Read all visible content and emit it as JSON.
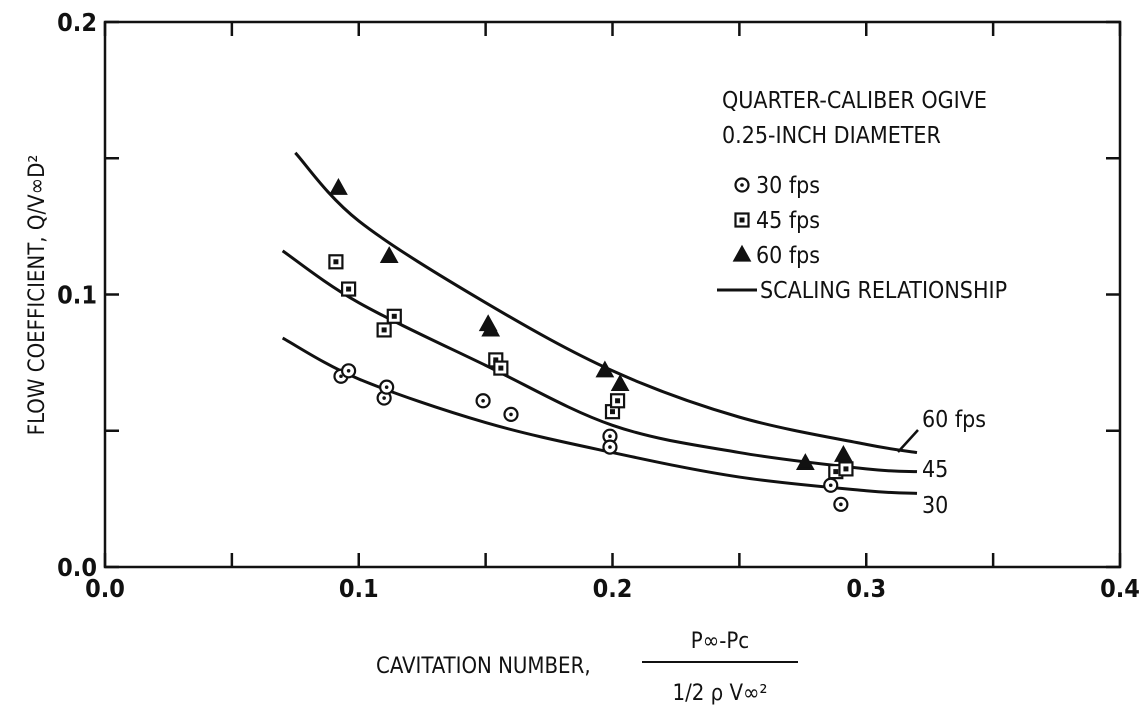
{
  "chart_data": {
    "type": "scatter",
    "title": "QUARTER-CALIBER OGIVE",
    "subtitle": "0.25-INCH DIAMETER",
    "xlabel": "CAVITATION NUMBER,",
    "xlabel_fraction": {
      "numerator": "P∞-Pc",
      "denominator": "1/2 ρ V∞²"
    },
    "ylabel": "FLOW COEFFICIENT,  Q/V∞D²",
    "xlim": [
      0.0,
      0.4
    ],
    "ylim": [
      0.0,
      0.2
    ],
    "x_ticks": [
      0.0,
      0.05,
      0.1,
      0.15,
      0.2,
      0.25,
      0.3,
      0.35,
      0.4
    ],
    "x_tick_labels": [
      {
        "value": 0.0,
        "label": "0.0"
      },
      {
        "value": 0.1,
        "label": "0.1"
      },
      {
        "value": 0.2,
        "label": "0.2"
      },
      {
        "value": 0.3,
        "label": "0.3"
      },
      {
        "value": 0.4,
        "label": "0.4"
      }
    ],
    "y_ticks": [
      0.0,
      0.05,
      0.1,
      0.15,
      0.2
    ],
    "y_tick_labels": [
      {
        "value": 0.0,
        "label": "0.0"
      },
      {
        "value": 0.1,
        "label": "0.1"
      },
      {
        "value": 0.2,
        "label": "0.2"
      }
    ],
    "grid": false,
    "legend_position": "top-right",
    "series": [
      {
        "name": "30 fps",
        "marker": "circle-dot",
        "points": [
          [
            0.093,
            0.07
          ],
          [
            0.096,
            0.072
          ],
          [
            0.11,
            0.062
          ],
          [
            0.111,
            0.066
          ],
          [
            0.149,
            0.061
          ],
          [
            0.16,
            0.056
          ],
          [
            0.199,
            0.048
          ],
          [
            0.199,
            0.044
          ],
          [
            0.286,
            0.03
          ],
          [
            0.29,
            0.023
          ]
        ]
      },
      {
        "name": "45 fps",
        "marker": "square-dot",
        "points": [
          [
            0.091,
            0.112
          ],
          [
            0.096,
            0.102
          ],
          [
            0.11,
            0.087
          ],
          [
            0.114,
            0.092
          ],
          [
            0.154,
            0.076
          ],
          [
            0.156,
            0.073
          ],
          [
            0.2,
            0.057
          ],
          [
            0.202,
            0.061
          ],
          [
            0.288,
            0.035
          ],
          [
            0.292,
            0.036
          ]
        ]
      },
      {
        "name": "60 fps",
        "marker": "triangle",
        "points": [
          [
            0.092,
            0.139
          ],
          [
            0.112,
            0.114
          ],
          [
            0.151,
            0.089
          ],
          [
            0.152,
            0.087
          ],
          [
            0.197,
            0.072
          ],
          [
            0.203,
            0.067
          ],
          [
            0.276,
            0.038
          ],
          [
            0.291,
            0.041
          ]
        ]
      }
    ],
    "curves": [
      {
        "name": "60 fps",
        "points": [
          [
            0.075,
            0.152
          ],
          [
            0.1,
            0.127
          ],
          [
            0.15,
            0.097
          ],
          [
            0.2,
            0.072
          ],
          [
            0.25,
            0.055
          ],
          [
            0.3,
            0.045
          ],
          [
            0.32,
            0.042
          ]
        ]
      },
      {
        "name": "45",
        "points": [
          [
            0.07,
            0.116
          ],
          [
            0.1,
            0.097
          ],
          [
            0.15,
            0.074
          ],
          [
            0.2,
            0.052
          ],
          [
            0.25,
            0.042
          ],
          [
            0.3,
            0.036
          ],
          [
            0.32,
            0.035
          ]
        ]
      },
      {
        "name": "30",
        "points": [
          [
            0.07,
            0.084
          ],
          [
            0.1,
            0.069
          ],
          [
            0.15,
            0.053
          ],
          [
            0.2,
            0.042
          ],
          [
            0.25,
            0.033
          ],
          [
            0.3,
            0.028
          ],
          [
            0.32,
            0.027
          ]
        ]
      }
    ],
    "curve_labels": [
      "60 fps",
      "45",
      "30"
    ],
    "legend_items": [
      "30 fps",
      "45 fps",
      "60 fps",
      "SCALING RELATIONSHIP"
    ]
  }
}
